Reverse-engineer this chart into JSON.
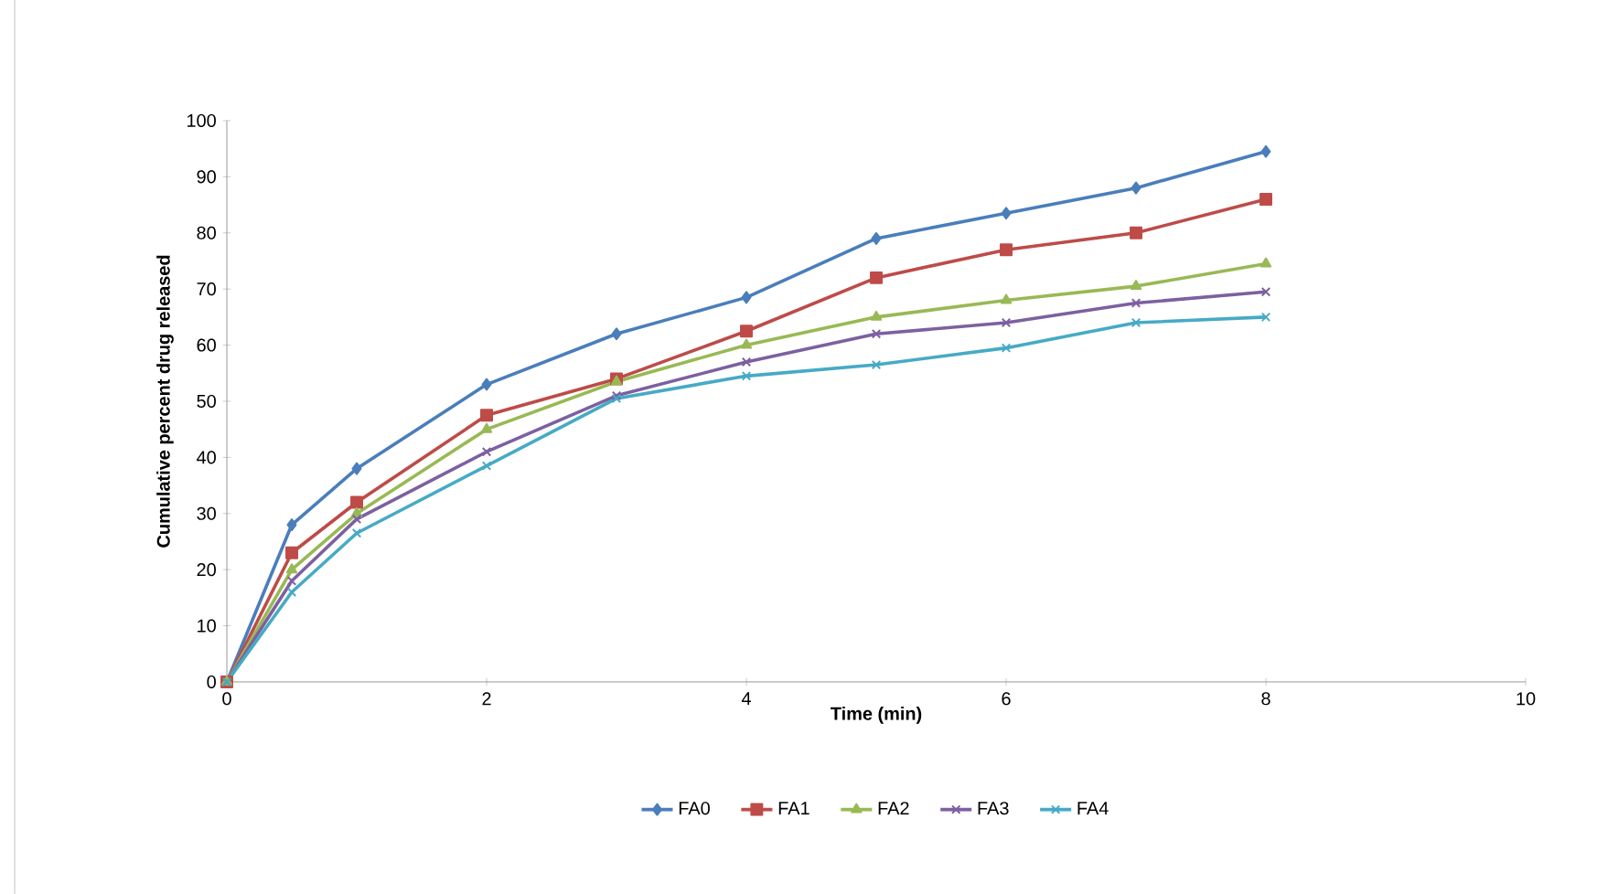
{
  "chart_data": {
    "type": "line",
    "xlabel": "Time (min)",
    "ylabel": "Cumulative percent drug released",
    "x": [
      0,
      0.5,
      1,
      2,
      3,
      4,
      5,
      6,
      7,
      8
    ],
    "series": [
      {
        "name": "FA0",
        "color": "#4a7ebb",
        "marker": "diamond",
        "values": [
          0,
          28,
          38,
          53,
          62,
          68.5,
          79,
          83.5,
          88,
          94.5
        ]
      },
      {
        "name": "FA1",
        "color": "#be4b48",
        "marker": "square",
        "values": [
          0,
          23,
          32,
          47.5,
          54,
          62.5,
          72,
          77,
          80,
          86
        ]
      },
      {
        "name": "FA2",
        "color": "#98b954",
        "marker": "triangle",
        "values": [
          0,
          20,
          30,
          45,
          53.5,
          60,
          65,
          68,
          70.5,
          74.5
        ]
      },
      {
        "name": "FA3",
        "color": "#7d60a0",
        "marker": "cross",
        "values": [
          0,
          18,
          29,
          41,
          51,
          57,
          62,
          64,
          67.5,
          69.5
        ]
      },
      {
        "name": "FA4",
        "color": "#46aac5",
        "marker": "cross",
        "values": [
          0,
          16,
          26.5,
          38.5,
          50.5,
          54.5,
          56.5,
          59.5,
          64,
          65
        ]
      }
    ],
    "xlim": [
      0,
      10
    ],
    "xticks": [
      0,
      2,
      4,
      6,
      8,
      10
    ],
    "ylim": [
      0,
      100
    ],
    "yticks": [
      0,
      10,
      20,
      30,
      40,
      50,
      60,
      70,
      80,
      90,
      100
    ],
    "grid": false,
    "legend": "bottom"
  }
}
